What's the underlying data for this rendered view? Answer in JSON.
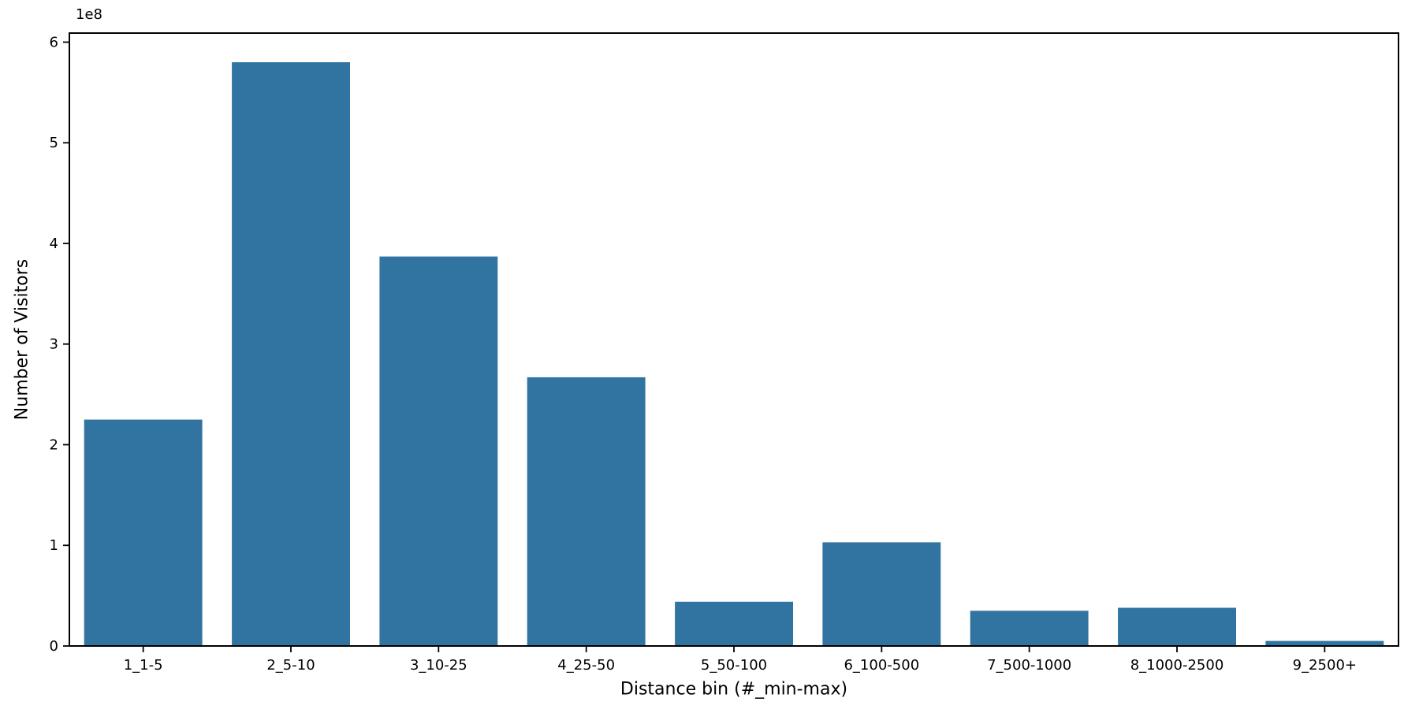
{
  "chart_data": {
    "type": "bar",
    "title": "",
    "xlabel": "Distance bin (#_min-max)",
    "ylabel": "Number of Visitors",
    "offset_text": "1e8",
    "categories": [
      "1_1-5",
      "2_5-10",
      "3_10-25",
      "4_25-50",
      "5_50-100",
      "6_100-500",
      "7_500-1000",
      "8_1000-2500",
      "9_2500+"
    ],
    "values": [
      225000000,
      580000000,
      387000000,
      267000000,
      44000000,
      103000000,
      35000000,
      38000000,
      5000000
    ],
    "yticks": [
      0,
      100000000,
      200000000,
      300000000,
      400000000,
      500000000,
      600000000
    ],
    "ytick_labels": [
      "0",
      "1",
      "2",
      "3",
      "4",
      "5",
      "6"
    ],
    "ylim": [
      0,
      609000000
    ],
    "bar_color": "#3274a1",
    "bar_width_fraction": 0.8,
    "grid": false,
    "axis_color": "#000000"
  }
}
